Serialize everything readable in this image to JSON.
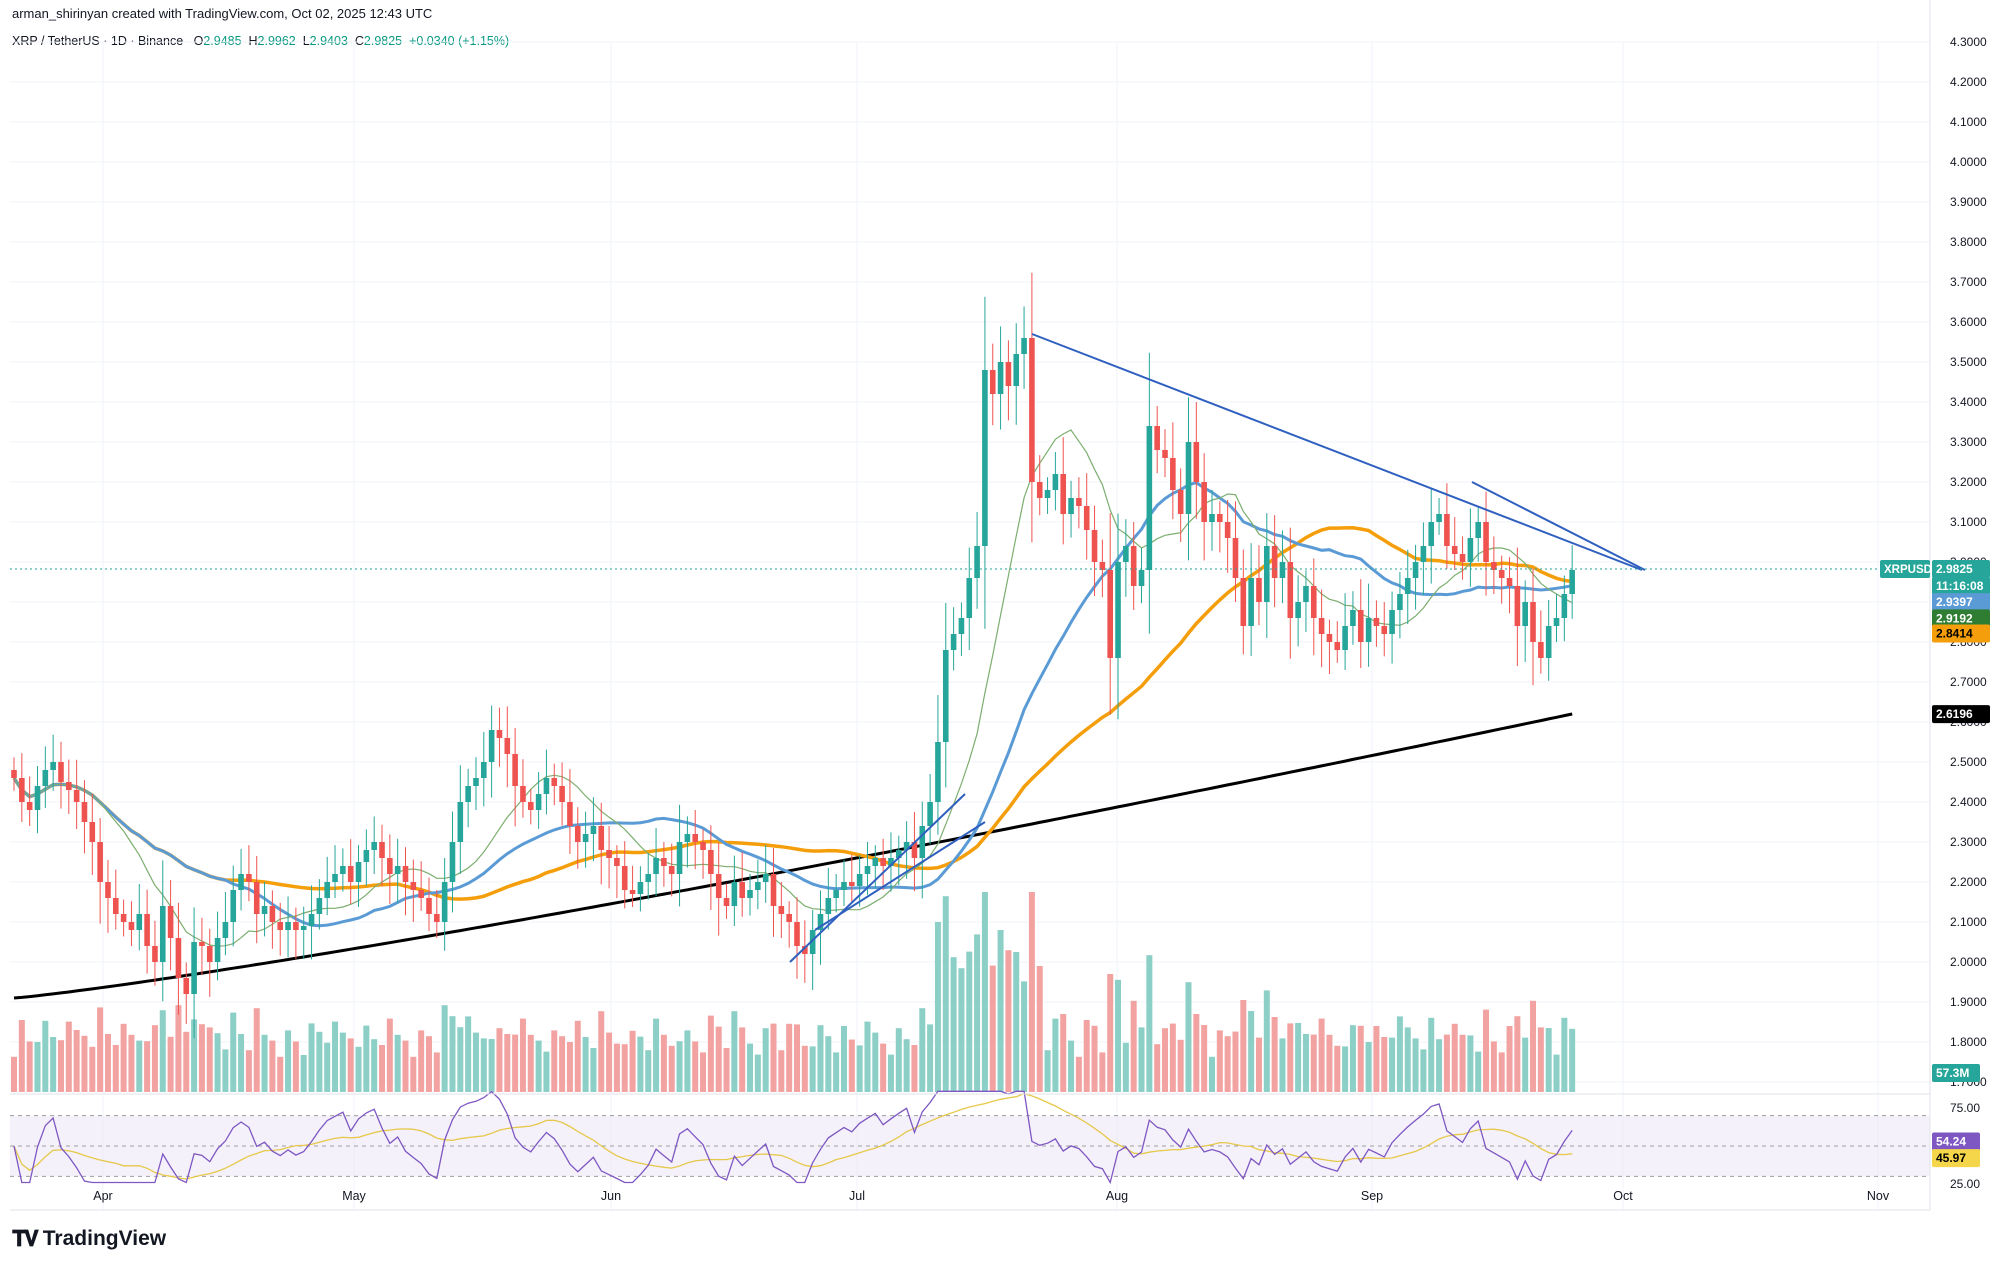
{
  "header": {
    "attribution": "arman_shirinyan created with TradingView.com, Oct 02, 2025 12:43 UTC"
  },
  "symbol": {
    "name": "XRP / TetherUS · 1D · Binance",
    "o_label": "O",
    "o": "2.9485",
    "h_label": "H",
    "h": "2.9962",
    "l_label": "L",
    "l": "2.9403",
    "c_label": "C",
    "c": "2.9825",
    "change": "+0.0340 (+1.15%)"
  },
  "badges": {
    "ticker": "XRPUSDT",
    "last": "2.9825",
    "countdown": "11:16:08",
    "ma_blue": "2.9397",
    "ma_green": "2.9192",
    "ma_orange": "2.8414",
    "ma_black": "2.6196",
    "volume": "57.3M",
    "rsi": "54.24",
    "rsi_ma": "45.97"
  },
  "colors": {
    "up": "#26a69a",
    "down": "#ef5350",
    "vol_up": "#8ccfc6",
    "vol_down": "#f2a3a1",
    "ma_blue": "#5b9bd5",
    "ma_green": "#7cae6f",
    "ma_orange": "#f59e0b",
    "ma_black": "#000000",
    "trend": "#2f5fbf",
    "rsi": "#7e57c2",
    "rsi_ma": "#e6c84a"
  },
  "logo": {
    "text": "TradingView",
    "icon": "tradingview-logo-icon"
  },
  "chart_data": {
    "type": "candlestick",
    "price_axis": {
      "min": 1.7,
      "max": 4.3,
      "ticks": [
        "4.3000",
        "4.2000",
        "4.1000",
        "4.0000",
        "3.9000",
        "3.8000",
        "3.7000",
        "3.6000",
        "3.5000",
        "3.4000",
        "3.3000",
        "3.2000",
        "3.1000",
        "3.0000",
        "2.9000",
        "2.8000",
        "2.7000",
        "2.6000",
        "2.5000",
        "2.4000",
        "2.3000",
        "2.2000",
        "2.1000",
        "2.0000",
        "1.9000",
        "1.8000",
        "1.7000"
      ]
    },
    "rsi_axis": {
      "ticks": [
        "75.00",
        "25.00"
      ],
      "min": 25,
      "max": 75
    },
    "time_axis": {
      "labels": [
        "Apr",
        "May",
        "Jun",
        "Jul",
        "Aug",
        "Sep",
        "Oct",
        "Nov"
      ]
    },
    "closes": [
      2.46,
      2.4,
      2.38,
      2.44,
      2.48,
      2.5,
      2.45,
      2.43,
      2.4,
      2.35,
      2.3,
      2.2,
      2.16,
      2.12,
      2.1,
      2.08,
      2.12,
      2.04,
      2.0,
      2.14,
      2.06,
      1.96,
      1.92,
      2.05,
      2.04,
      2.0,
      2.06,
      2.1,
      2.18,
      2.22,
      2.2,
      2.12,
      2.14,
      2.1,
      2.08,
      2.1,
      2.08,
      2.09,
      2.12,
      2.16,
      2.2,
      2.22,
      2.24,
      2.2,
      2.25,
      2.28,
      2.3,
      2.26,
      2.22,
      2.24,
      2.2,
      2.18,
      2.16,
      2.12,
      2.1,
      2.2,
      2.3,
      2.4,
      2.44,
      2.46,
      2.5,
      2.58,
      2.56,
      2.52,
      2.44,
      2.4,
      2.38,
      2.42,
      2.46,
      2.44,
      2.4,
      2.34,
      2.3,
      2.32,
      2.34,
      2.28,
      2.26,
      2.24,
      2.18,
      2.17,
      2.2,
      2.22,
      2.26,
      2.24,
      2.22,
      2.3,
      2.32,
      2.3,
      2.28,
      2.22,
      2.16,
      2.14,
      2.2,
      2.16,
      2.18,
      2.2,
      2.22,
      2.14,
      2.12,
      2.1,
      2.04,
      2.02,
      2.08,
      2.12,
      2.16,
      2.18,
      2.2,
      2.19,
      2.22,
      2.24,
      2.26,
      2.24,
      2.26,
      2.28,
      2.3,
      2.26,
      2.34,
      2.4,
      2.55,
      2.78,
      2.82,
      2.86,
      2.96,
      3.04,
      3.48,
      3.42,
      3.5,
      3.44,
      3.52,
      3.56,
      3.2,
      3.16,
      3.18,
      3.22,
      3.12,
      3.16,
      3.14,
      3.08,
      3.0,
      2.98,
      2.76,
      3.0,
      3.04,
      2.94,
      2.98,
      3.34,
      3.28,
      3.26,
      3.18,
      3.12,
      3.3,
      3.2,
      3.1,
      3.12,
      3.1,
      3.06,
      2.96,
      2.84,
      2.96,
      2.9,
      3.04,
      2.96,
      3.0,
      2.86,
      2.9,
      2.94,
      2.86,
      2.82,
      2.8,
      2.78,
      2.84,
      2.88,
      2.8,
      2.86,
      2.84,
      2.82,
      2.88,
      2.92,
      2.96,
      3.0,
      3.04,
      3.1,
      3.12,
      3.04,
      3.02,
      3.0,
      3.06,
      3.1,
      3.0,
      2.98,
      2.96,
      2.94,
      2.84,
      2.9,
      2.8,
      2.76,
      2.84,
      2.86,
      2.92,
      2.98
    ],
    "ma_blue_last": 2.9397,
    "ma_green_last": 2.9192,
    "ma_orange_last": 2.8414,
    "ma_black_last": 2.6196,
    "volume_last": "57.3M",
    "rsi_last": 54.24,
    "rsi_ma_last": 45.97
  }
}
